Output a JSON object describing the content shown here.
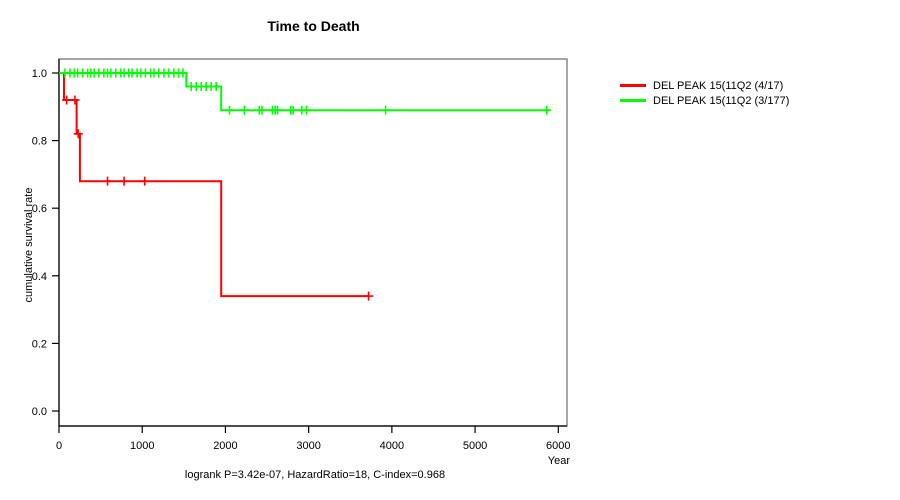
{
  "caption": "logrank P=3.42e-07, HazardRatio=18, C-index=0.968",
  "chart_data": {
    "type": "line",
    "subtype": "kaplan-meier-step",
    "title": "Time to Death",
    "xlabel": "Year",
    "ylabel": "cumulative survival rate",
    "xlim": [
      0,
      6000
    ],
    "ylim": [
      0,
      1
    ],
    "x_ticks": [
      0,
      1000,
      2000,
      3000,
      4000,
      5000,
      6000
    ],
    "y_ticks": [
      "0.0",
      "0.2",
      "0.4",
      "0.6",
      "0.8",
      "1.0"
    ],
    "grid": false,
    "legend_position": "right-outside",
    "colors": {
      "box_border": "#808080",
      "axis": "#000000"
    },
    "series": [
      {
        "name": "DEL PEAK 15(11Q2 (4/17)",
        "color": "#ff0000",
        "levels": [
          [
            0,
            1.0
          ],
          [
            60,
            0.92
          ],
          [
            212,
            0.82
          ],
          [
            251,
            0.68
          ],
          [
            1949,
            0.34
          ]
        ],
        "end": 3720,
        "censors": [
          [
            92,
            0.92
          ],
          [
            192,
            0.92
          ],
          [
            231,
            0.82
          ],
          [
            583,
            0.68
          ],
          [
            782,
            0.68
          ],
          [
            1030,
            0.68
          ],
          [
            3720,
            0.34
          ]
        ]
      },
      {
        "name": "DEL PEAK 15(11Q2 (3/177)",
        "color": "#00ff00",
        "levels": [
          [
            0,
            1.0
          ],
          [
            1530,
            0.96
          ],
          [
            1949,
            0.89
          ]
        ],
        "end": 5890,
        "censors": [
          [
            72,
            1.0
          ],
          [
            132,
            1.0
          ],
          [
            183,
            1.0
          ],
          [
            224,
            1.0
          ],
          [
            284,
            1.0
          ],
          [
            344,
            1.0
          ],
          [
            383,
            1.0
          ],
          [
            423,
            1.0
          ],
          [
            479,
            1.0
          ],
          [
            539,
            1.0
          ],
          [
            583,
            1.0
          ],
          [
            623,
            1.0
          ],
          [
            683,
            1.0
          ],
          [
            743,
            1.0
          ],
          [
            782,
            1.0
          ],
          [
            838,
            1.0
          ],
          [
            878,
            1.0
          ],
          [
            938,
            1.0
          ],
          [
            982,
            1.0
          ],
          [
            1038,
            1.0
          ],
          [
            1102,
            1.0
          ],
          [
            1141,
            1.0
          ],
          [
            1198,
            1.0
          ],
          [
            1261,
            1.0
          ],
          [
            1321,
            1.0
          ],
          [
            1381,
            1.0
          ],
          [
            1437,
            1.0
          ],
          [
            1489,
            1.0
          ],
          [
            1589,
            0.96
          ],
          [
            1649,
            0.96
          ],
          [
            1709,
            0.96
          ],
          [
            1769,
            0.96
          ],
          [
            1829,
            0.96
          ],
          [
            1889,
            0.96
          ],
          [
            2048,
            0.89
          ],
          [
            2227,
            0.89
          ],
          [
            2407,
            0.89
          ],
          [
            2439,
            0.89
          ],
          [
            2566,
            0.89
          ],
          [
            2599,
            0.89
          ],
          [
            2626,
            0.89
          ],
          [
            2786,
            0.89
          ],
          [
            2814,
            0.89
          ],
          [
            2918,
            0.89
          ],
          [
            2973,
            0.89
          ],
          [
            3924,
            0.89
          ],
          [
            5860,
            0.89
          ]
        ]
      }
    ]
  }
}
